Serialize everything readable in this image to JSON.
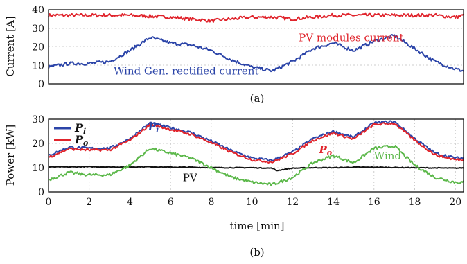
{
  "colors": {
    "blue": "#2b44a8",
    "red": "#e0242c",
    "green": "#5cb84a",
    "black": "#111111"
  },
  "chart_data": [
    {
      "id": "a",
      "type": "line",
      "caption": "(a)",
      "xlim": [
        0,
        20.4
      ],
      "ylim": [
        0,
        40
      ],
      "yticks": [
        0,
        10,
        20,
        30,
        40
      ],
      "ylabel": "Current [A]",
      "grid": true,
      "series": [
        {
          "name": "PV modules current",
          "color": "#e0242c",
          "x": [
            0,
            1,
            2,
            3,
            4,
            5,
            6,
            7,
            8,
            9,
            10,
            11,
            12,
            13,
            14,
            15,
            16,
            17,
            18,
            19,
            20,
            20.4
          ],
          "y": [
            37,
            37,
            37,
            37,
            37,
            36.5,
            36,
            35,
            34,
            35,
            36,
            36,
            35,
            36,
            37,
            37,
            37,
            37,
            37,
            37,
            36,
            37
          ]
        },
        {
          "name": "Wind Gen. rectified current",
          "color": "#2b44a8",
          "x": [
            0,
            1,
            2,
            3,
            4,
            5,
            6,
            7,
            8,
            9,
            10,
            11,
            12,
            13,
            14,
            15,
            16,
            17,
            18,
            19,
            20,
            20.4
          ],
          "y": [
            9,
            11,
            11,
            12,
            18,
            25,
            22,
            21,
            18,
            13,
            9,
            7,
            12,
            19,
            22,
            18,
            23,
            26,
            19,
            12,
            8,
            7
          ]
        }
      ],
      "annotations": [
        {
          "text": "PV modules current",
          "x": 12.3,
          "y": 23,
          "color": "#e0242c"
        },
        {
          "text": "Wind Gen. rectified current",
          "x": 3.2,
          "y": 5,
          "color": "#2b44a8"
        }
      ]
    },
    {
      "id": "b",
      "type": "line",
      "caption": "(b)",
      "xlim": [
        0,
        20.4
      ],
      "ylim": [
        0,
        30
      ],
      "xticks": [
        0,
        2,
        4,
        6,
        8,
        10,
        12,
        14,
        16,
        18,
        20
      ],
      "yticks": [
        0,
        10,
        20,
        30
      ],
      "xlabel": "time [min]",
      "ylabel": "Power [kW]",
      "grid": true,
      "legend": {
        "position": "top-left",
        "entries": [
          {
            "main": "P",
            "sub": "i",
            "color": "#2b44a8"
          },
          {
            "main": "P",
            "sub": "o",
            "color": "#e0242c"
          }
        ]
      },
      "series": [
        {
          "name": "PV",
          "color": "#111111",
          "x": [
            0,
            1,
            2,
            3,
            4,
            5,
            6,
            7,
            8,
            9,
            10,
            11,
            11.2,
            12,
            13,
            14,
            15,
            16,
            17,
            18,
            19,
            20,
            20.4
          ],
          "y": [
            10.3,
            10.3,
            10.4,
            10.3,
            10.3,
            10.4,
            10.2,
            10.2,
            10,
            10,
            10,
            9.8,
            8.8,
            9.8,
            10,
            10,
            10.2,
            10.2,
            10.1,
            10,
            9.9,
            9.8,
            9.9
          ]
        },
        {
          "name": "Wind",
          "color": "#5cb84a",
          "x": [
            0,
            1,
            2,
            3,
            4,
            5,
            6,
            7,
            8,
            9,
            10,
            11,
            12,
            13,
            14,
            15,
            16,
            17,
            18,
            19,
            20,
            20.4
          ],
          "y": [
            5,
            8,
            7,
            7,
            11,
            18,
            16,
            14,
            10,
            6,
            4,
            3,
            6,
            12,
            15,
            12,
            18,
            19,
            11,
            6,
            4,
            4
          ]
        },
        {
          "name": "Pi",
          "color": "#2b44a8",
          "x": [
            0,
            1,
            2,
            3,
            4,
            5,
            6,
            7,
            8,
            9,
            10,
            11,
            12,
            13,
            14,
            15,
            16,
            17,
            18,
            19,
            20,
            20.4
          ],
          "y": [
            15,
            18.5,
            18,
            18,
            22,
            28.5,
            26.5,
            24.5,
            21,
            17,
            14,
            13,
            16.5,
            22,
            25,
            22.5,
            28.5,
            29,
            22,
            16,
            14,
            14
          ]
        },
        {
          "name": "Po",
          "color": "#e0242c",
          "x": [
            0,
            1,
            2,
            3,
            4,
            5,
            6,
            7,
            8,
            9,
            10,
            11,
            12,
            13,
            14,
            15,
            16,
            17,
            18,
            19,
            20,
            20.4
          ],
          "y": [
            14.3,
            17.8,
            17.3,
            17.3,
            21.3,
            27.8,
            25.8,
            23.8,
            20.3,
            16.3,
            13.3,
            12.3,
            15.8,
            21.3,
            24.3,
            21.8,
            27.8,
            28.3,
            21.3,
            15.3,
            13.3,
            13.3
          ]
        }
      ],
      "annotations": [
        {
          "label": "Pi",
          "main": "P",
          "sub": "i",
          "x": 4.9,
          "y": 25.5,
          "color": "#2b44a8"
        },
        {
          "label": "Po",
          "main": "P",
          "sub": "o",
          "x": 13.3,
          "y": 16,
          "color": "#e0242c"
        },
        {
          "label": "Wind",
          "text": "Wind",
          "x": 16.0,
          "y": 13.5,
          "color": "#5cb84a"
        },
        {
          "label": "PV",
          "text": "PV",
          "x": 6.6,
          "y": 4.5,
          "color": "#111111"
        }
      ]
    }
  ]
}
